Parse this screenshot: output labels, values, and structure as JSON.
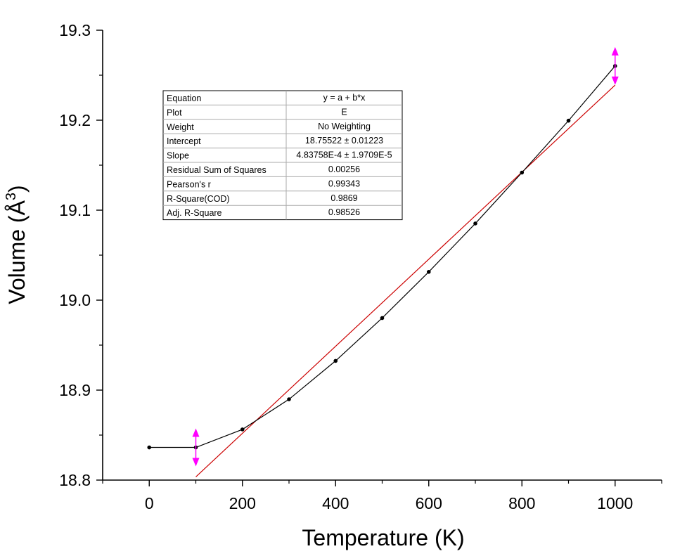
{
  "chart_data": {
    "type": "scatter",
    "xlabel": "Temperature (K)",
    "ylabel": "Volume (Å",
    "ylabel_superscript": "3",
    "ylabel_close": ")",
    "xlim": [
      -100,
      1100
    ],
    "ylim": [
      18.8,
      19.3
    ],
    "x_ticks": [
      0,
      200,
      400,
      600,
      800,
      1000
    ],
    "x_tick_labels": [
      "0",
      "200",
      "400",
      "600",
      "800",
      "1000"
    ],
    "y_ticks": [
      18.8,
      18.9,
      19.0,
      19.1,
      19.2,
      19.3
    ],
    "y_tick_labels": [
      "18.8",
      "18.9",
      "19.0",
      "19.1",
      "19.2",
      "19.3"
    ],
    "series": [
      {
        "name": "E",
        "color": "#000000",
        "x": [
          0,
          100,
          200,
          300,
          400,
          500,
          600,
          700,
          800,
          900,
          1000
        ],
        "y": [
          18.8363,
          18.8363,
          18.8563,
          18.8898,
          18.9325,
          18.9801,
          19.0314,
          19.0852,
          19.1418,
          19.1995,
          19.2603
        ]
      }
    ],
    "fit": {
      "color": "#cc0000",
      "x_range": [
        100,
        1000
      ],
      "intercept": 18.75522,
      "slope": 0.000483758
    },
    "fit_range_markers": {
      "color": "#ff00ff",
      "x": [
        100,
        1000
      ]
    },
    "stats_table": [
      {
        "label": "Equation",
        "value": "y = a + b*x"
      },
      {
        "label": "Plot",
        "value": "E"
      },
      {
        "label": "Weight",
        "value": "No Weighting"
      },
      {
        "label": "Intercept",
        "value": "18.75522 ± 0.01223"
      },
      {
        "label": "Slope",
        "value": "4.83758E-4 ± 1.9709E-5"
      },
      {
        "label": "Residual Sum of Squares",
        "value": "0.00256"
      },
      {
        "label": "Pearson's r",
        "value": "0.99343"
      },
      {
        "label": "R-Square(COD)",
        "value": "0.9869"
      },
      {
        "label": "Adj. R-Square",
        "value": "0.98526"
      }
    ]
  }
}
